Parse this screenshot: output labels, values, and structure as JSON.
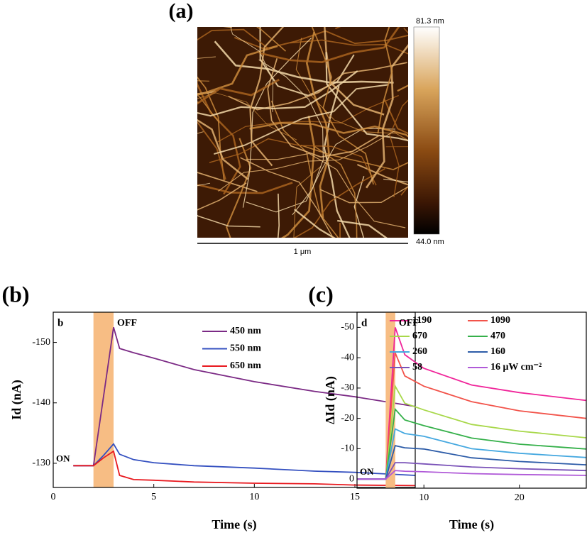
{
  "panel_a": {
    "label": "(a)",
    "colorbar_max": "81.3 nm",
    "colorbar_min": "44.0 nm",
    "scale_bar": "1 μm"
  },
  "chart_data": [
    {
      "type": "line",
      "panel_label": "(b)",
      "inset_label": "b",
      "x_label": "Time (s)",
      "y_label": "Id (nA)",
      "annotations": [
        "ON",
        "OFF"
      ],
      "shade": [
        2,
        3
      ],
      "shade_color": "#f7bd84",
      "legend": "upper right",
      "xlim": [
        0,
        18
      ],
      "xticks": [
        0,
        5,
        10,
        15
      ],
      "ylim": [
        -126,
        -155
      ],
      "yticks": [
        -150,
        -140,
        -130
      ],
      "x": [
        1,
        2,
        2.5,
        3,
        3.3,
        4,
        5,
        7,
        10,
        13,
        15,
        18
      ],
      "series": [
        {
          "name": "450 nm",
          "color": "#7b2a85",
          "values": [
            -129.6,
            -129.6,
            -141,
            -152.5,
            -149,
            -148.3,
            -147.4,
            -145.5,
            -143.5,
            -141.9,
            -141,
            -139.4
          ]
        },
        {
          "name": "550 nm",
          "color": "#3450c0",
          "values": [
            -129.6,
            -129.6,
            -131.3,
            -133.2,
            -131.5,
            -130.6,
            -130.1,
            -129.6,
            -129.2,
            -128.7,
            -128.5,
            -128
          ]
        },
        {
          "name": "650 nm",
          "color": "#e8191f",
          "values": [
            -129.6,
            -129.6,
            -130.9,
            -132,
            -128,
            -127.3,
            -127.2,
            -126.9,
            -126.7,
            -126.6,
            -126.4,
            -126.3
          ]
        }
      ]
    },
    {
      "type": "line",
      "panel_label": "(c)",
      "inset_label": "d",
      "x_label": "Time (s)",
      "y_label": "ΔId (nA)",
      "annotations": [
        "ON",
        "OFF"
      ],
      "shade": [
        6,
        7
      ],
      "shade_color": "#f7bd84",
      "legend": "upper right",
      "xlim": [
        3,
        27
      ],
      "xticks": [
        10,
        20
      ],
      "ylim": [
        3,
        -55
      ],
      "yticks": [
        -50,
        -40,
        -30,
        -20,
        -10,
        0
      ],
      "x": [
        3,
        6,
        7,
        8,
        10,
        15,
        20,
        27
      ],
      "series": [
        {
          "name": "1190",
          "color": "#f0259a",
          "values": [
            0,
            0,
            -50,
            -41,
            -36.5,
            -31,
            -28.5,
            -25.9
          ]
        },
        {
          "name": "1090",
          "color": "#f2534a",
          "values": [
            0,
            0,
            -41.6,
            -34,
            -30.6,
            -25.5,
            -22.5,
            -20
          ]
        },
        {
          "name": "670",
          "color": "#a8d84a",
          "values": [
            0,
            0,
            -30.6,
            -25,
            -22.8,
            -18,
            -15.8,
            -13.6
          ]
        },
        {
          "name": "470",
          "color": "#35b04a",
          "values": [
            0,
            0,
            -23,
            -19.5,
            -17.6,
            -13.5,
            -11.5,
            -9.9
          ]
        },
        {
          "name": "260",
          "color": "#45a8e0",
          "values": [
            0,
            0,
            -16.5,
            -15,
            -14.1,
            -10,
            -8.5,
            -7.1
          ]
        },
        {
          "name": "160",
          "color": "#2d5ca8",
          "values": [
            0,
            0,
            -11,
            -10.3,
            -9.9,
            -7,
            -5.8,
            -4.7
          ]
        },
        {
          "name": "58",
          "color": "#7a52b8",
          "values": [
            0,
            0,
            -5.4,
            -5.4,
            -5,
            -4,
            -3.4,
            -2.8
          ]
        },
        {
          "name": "16 μW cm⁻²",
          "color": "#b05ad8",
          "values": [
            0,
            0,
            -2.8,
            -2.6,
            -2.4,
            -1.8,
            -1.5,
            -1.2
          ]
        }
      ]
    }
  ]
}
